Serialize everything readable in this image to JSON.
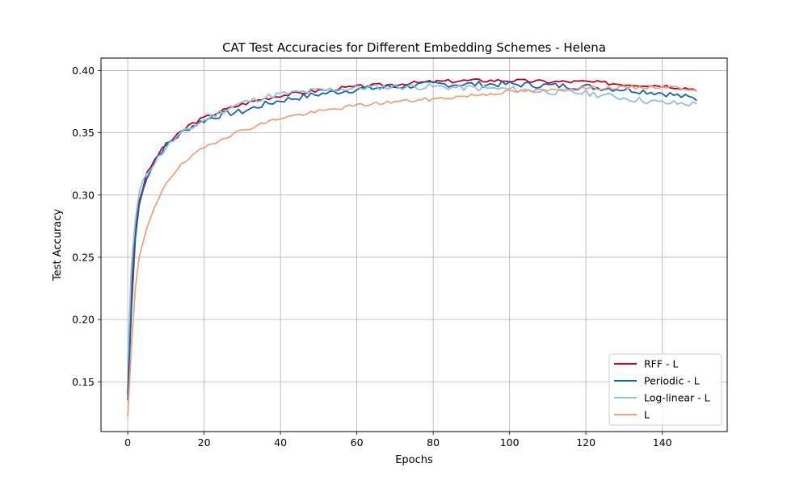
{
  "chart_data": {
    "type": "line",
    "title": "CAT Test Accuracies for Different Embedding Schemes - Helena",
    "xlabel": "Epochs",
    "ylabel": "Test Accuracy",
    "xlim": [
      -7,
      157
    ],
    "ylim": [
      0.11,
      0.41
    ],
    "xticks": [
      0,
      20,
      40,
      60,
      80,
      100,
      120,
      140
    ],
    "yticks": [
      0.15,
      0.2,
      0.25,
      0.3,
      0.35,
      0.4
    ],
    "xtick_labels": [
      "0",
      "20",
      "40",
      "60",
      "80",
      "100",
      "120",
      "140"
    ],
    "ytick_labels": [
      "0.15",
      "0.20",
      "0.25",
      "0.30",
      "0.35",
      "0.40"
    ],
    "grid": true,
    "legend_position": "bottom-right",
    "series": [
      {
        "name": "RFF - L",
        "color": "#c0001f",
        "anchors": [
          [
            0,
            0.14
          ],
          [
            1,
            0.225
          ],
          [
            2,
            0.27
          ],
          [
            3,
            0.295
          ],
          [
            5,
            0.317
          ],
          [
            8,
            0.333
          ],
          [
            10,
            0.34
          ],
          [
            13,
            0.348
          ],
          [
            16,
            0.356
          ],
          [
            20,
            0.362
          ],
          [
            25,
            0.368
          ],
          [
            30,
            0.373
          ],
          [
            35,
            0.377
          ],
          [
            40,
            0.38
          ],
          [
            50,
            0.384
          ],
          [
            60,
            0.387
          ],
          [
            70,
            0.389
          ],
          [
            80,
            0.391
          ],
          [
            90,
            0.392
          ],
          [
            100,
            0.392
          ],
          [
            110,
            0.391
          ],
          [
            120,
            0.391
          ],
          [
            130,
            0.389
          ],
          [
            140,
            0.388
          ],
          [
            149,
            0.385
          ]
        ],
        "amp": 0.0015,
        "seed": 3
      },
      {
        "name": "Periodic - L",
        "color": "#0c66ac",
        "anchors": [
          [
            0,
            0.135
          ],
          [
            1,
            0.21
          ],
          [
            2,
            0.265
          ],
          [
            3,
            0.292
          ],
          [
            5,
            0.315
          ],
          [
            8,
            0.332
          ],
          [
            10,
            0.34
          ],
          [
            13,
            0.347
          ],
          [
            16,
            0.354
          ],
          [
            20,
            0.36
          ],
          [
            25,
            0.365
          ],
          [
            30,
            0.367
          ],
          [
            35,
            0.372
          ],
          [
            40,
            0.376
          ],
          [
            50,
            0.381
          ],
          [
            60,
            0.385
          ],
          [
            70,
            0.387
          ],
          [
            80,
            0.389
          ],
          [
            90,
            0.389
          ],
          [
            100,
            0.389
          ],
          [
            110,
            0.388
          ],
          [
            120,
            0.387
          ],
          [
            130,
            0.385
          ],
          [
            140,
            0.382
          ],
          [
            149,
            0.377
          ]
        ],
        "amp": 0.0025,
        "seed": 7
      },
      {
        "name": "Log-linear - L",
        "color": "#8fc1dc",
        "anchors": [
          [
            0,
            0.165
          ],
          [
            1,
            0.245
          ],
          [
            2,
            0.28
          ],
          [
            3,
            0.302
          ],
          [
            5,
            0.318
          ],
          [
            8,
            0.33
          ],
          [
            10,
            0.338
          ],
          [
            13,
            0.347
          ],
          [
            16,
            0.353
          ],
          [
            20,
            0.36
          ],
          [
            25,
            0.368
          ],
          [
            30,
            0.374
          ],
          [
            35,
            0.378
          ],
          [
            40,
            0.381
          ],
          [
            50,
            0.384
          ],
          [
            60,
            0.386
          ],
          [
            70,
            0.387
          ],
          [
            80,
            0.387
          ],
          [
            90,
            0.386
          ],
          [
            100,
            0.385
          ],
          [
            110,
            0.383
          ],
          [
            120,
            0.382
          ],
          [
            130,
            0.378
          ],
          [
            140,
            0.374
          ],
          [
            149,
            0.373
          ]
        ],
        "amp": 0.0025,
        "seed": 11
      },
      {
        "name": "L",
        "color": "#f0a07e",
        "anchors": [
          [
            0,
            0.122
          ],
          [
            1,
            0.18
          ],
          [
            2,
            0.225
          ],
          [
            3,
            0.25
          ],
          [
            5,
            0.273
          ],
          [
            8,
            0.297
          ],
          [
            10,
            0.31
          ],
          [
            13,
            0.321
          ],
          [
            16,
            0.329
          ],
          [
            20,
            0.338
          ],
          [
            25,
            0.346
          ],
          [
            30,
            0.352
          ],
          [
            35,
            0.357
          ],
          [
            40,
            0.362
          ],
          [
            50,
            0.367
          ],
          [
            60,
            0.372
          ],
          [
            70,
            0.375
          ],
          [
            80,
            0.377
          ],
          [
            90,
            0.38
          ],
          [
            100,
            0.383
          ],
          [
            110,
            0.384
          ],
          [
            120,
            0.386
          ],
          [
            130,
            0.386
          ],
          [
            140,
            0.387
          ],
          [
            149,
            0.385
          ]
        ],
        "amp": 0.0015,
        "seed": 19
      }
    ]
  }
}
